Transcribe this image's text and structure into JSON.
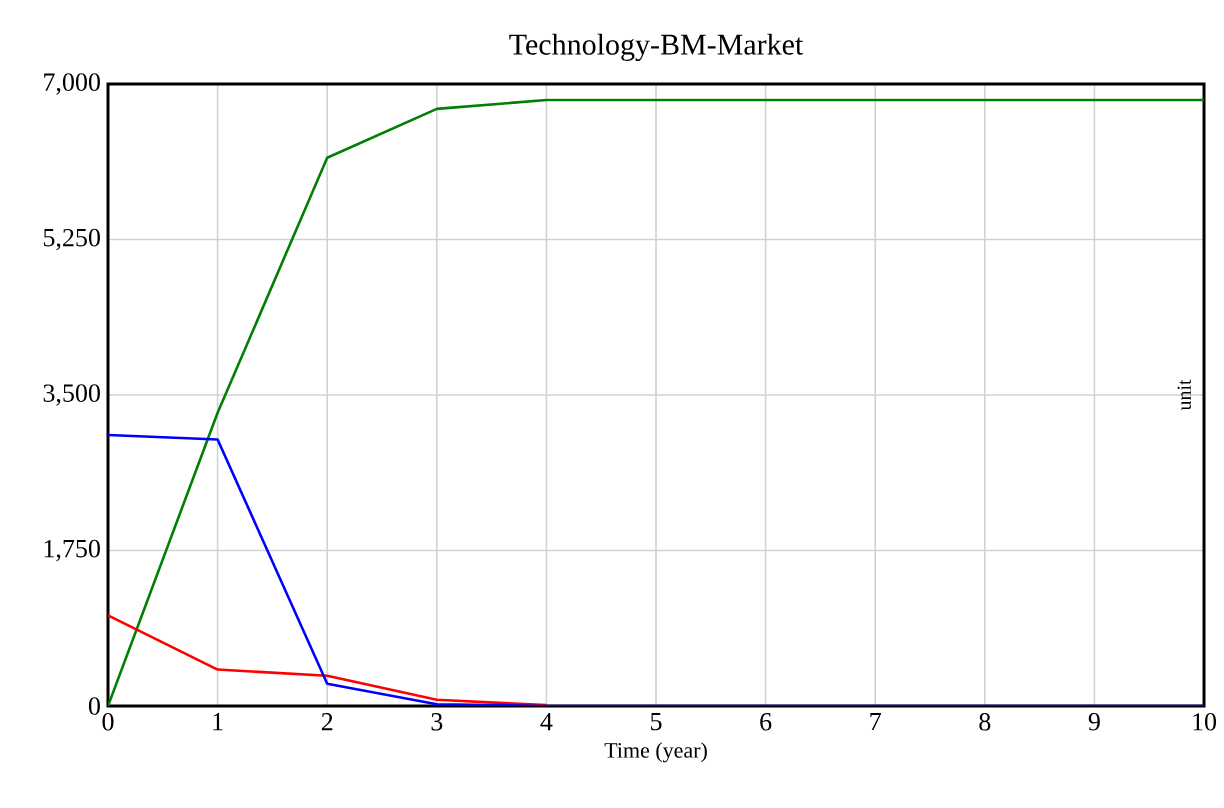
{
  "chart_data": {
    "type": "line",
    "title": "Technology-BM-Market",
    "xlabel": "Time (year)",
    "ylabel": "unit",
    "x": [
      0,
      1,
      2,
      3,
      4,
      5,
      6,
      7,
      8,
      9,
      10
    ],
    "series": [
      {
        "color": "#008000",
        "values": [
          0,
          3300,
          6170,
          6720,
          6820,
          6820,
          6820,
          6820,
          6820,
          6820,
          6820
        ]
      },
      {
        "color": "#ff0000",
        "values": [
          1020,
          410,
          340,
          70,
          10,
          null,
          null,
          null,
          null,
          null,
          null
        ]
      },
      {
        "color": "#0000ff",
        "values": [
          3050,
          3000,
          250,
          20,
          0,
          0,
          0,
          0,
          0,
          0,
          0
        ]
      }
    ],
    "xlim": [
      0,
      10
    ],
    "ylim": [
      0,
      7000
    ],
    "xticks": [
      0,
      1,
      2,
      3,
      4,
      5,
      6,
      7,
      8,
      9,
      10
    ],
    "yticks": [
      0,
      {
        "value": 1750,
        "label": "1,750"
      },
      {
        "value": 3500,
        "label": "3,500"
      },
      {
        "value": 5250,
        "label": "5,250"
      },
      {
        "value": 7000,
        "label": "7,000"
      }
    ],
    "grid": true,
    "marker": "none",
    "line_style": "solid"
  }
}
